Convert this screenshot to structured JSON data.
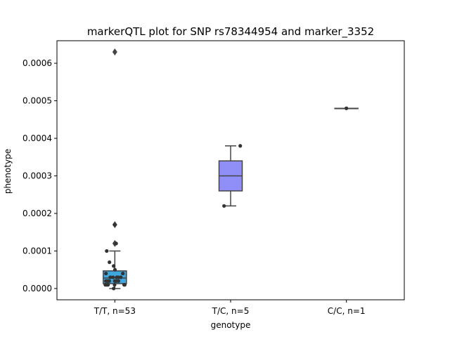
{
  "chart_data": {
    "type": "box",
    "title": "markerQTL plot for SNP rs78344954 and marker_3352",
    "xlabel": "genotype",
    "ylabel": "phenotype",
    "ylim": [
      -3e-05,
      0.00066
    ],
    "yticks": [
      0.0,
      0.0001,
      0.0002,
      0.0003,
      0.0004,
      0.0005,
      0.0006
    ],
    "ytick_labels": [
      "0.0000",
      "0.0001",
      "0.0002",
      "0.0003",
      "0.0004",
      "0.0005",
      "0.0006"
    ],
    "grid": false,
    "categories": [
      "T/T, n=53",
      "T/C, n=5",
      "C/C, n=1"
    ],
    "boxes": [
      {
        "category": "T/T, n=53",
        "color": "#3fa7e0",
        "q1": 1.3e-05,
        "median": 2.8e-05,
        "q3": 4.7e-05,
        "whisker_low": 0.0,
        "whisker_high": 0.0001,
        "outliers": [
          0.00063,
          0.00017,
          0.00012
        ],
        "points": [
          0.00017,
          0.00012,
          0.0001,
          7e-05,
          6e-05,
          5e-05,
          4e-05,
          4e-05,
          3e-05,
          3e-05,
          3e-05,
          3e-05,
          3e-05,
          2e-05,
          2e-05,
          2e-05,
          2e-05,
          2e-05,
          2e-05,
          1e-05,
          1e-05,
          1e-05,
          1e-05,
          1e-05,
          1e-05,
          0.0
        ]
      },
      {
        "category": "T/C, n=5",
        "color": "#8f8ff7",
        "q1": 0.00026,
        "median": 0.0003,
        "q3": 0.00034,
        "whisker_low": 0.00022,
        "whisker_high": 0.00038,
        "outliers": [],
        "points": [
          0.00038,
          0.00022
        ]
      },
      {
        "category": "C/C, n=1",
        "color": "#b5b5f0",
        "q1": 0.00048,
        "median": 0.00048,
        "q3": 0.00048,
        "whisker_low": 0.00048,
        "whisker_high": 0.00048,
        "outliers": [],
        "points": [
          0.00048
        ]
      }
    ]
  }
}
